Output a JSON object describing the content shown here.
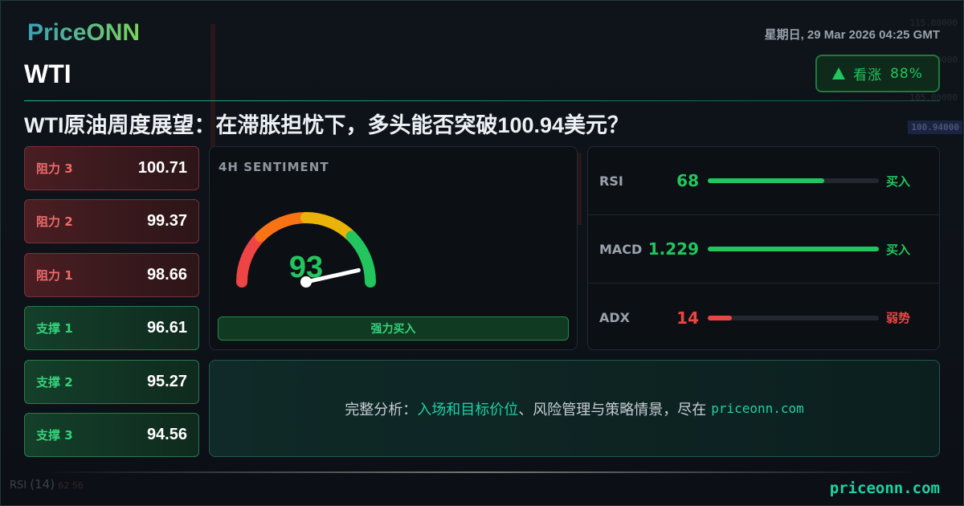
{
  "brand": {
    "logo": "PriceONN",
    "footer_url": "priceonn.com"
  },
  "header": {
    "symbol": "WTI",
    "datetime": "星期日, 29 Mar 2026 04:25 GMT",
    "sentiment_badge": {
      "label": "看涨",
      "percent": "88%",
      "direction": "up",
      "color": "#22c55e"
    },
    "title": "WTI原油周度展望：在滞胀担忧下，多头能否突破100.94美元？"
  },
  "background_chart": {
    "axis_labels": [
      "115.00000",
      "110.00000",
      "105.00000"
    ],
    "price_tag": "100.94000",
    "rsi_label": "RSI",
    "rsi_params": "(14)",
    "rsi_values": "62 56"
  },
  "levels": [
    {
      "label": "阻力 3",
      "value": "100.71",
      "type": "resistance"
    },
    {
      "label": "阻力 2",
      "value": "99.37",
      "type": "resistance"
    },
    {
      "label": "阻力 1",
      "value": "98.66",
      "type": "resistance"
    },
    {
      "label": "支撑 1",
      "value": "96.61",
      "type": "support"
    },
    {
      "label": "支撑 2",
      "value": "95.27",
      "type": "support"
    },
    {
      "label": "支撑 3",
      "value": "94.56",
      "type": "support"
    }
  ],
  "sentiment": {
    "title": "4H SENTIMENT",
    "score": "93",
    "score_value": 93,
    "verdict": "强力买入",
    "gauge_colors": [
      "#ef4444",
      "#f97316",
      "#eab308",
      "#22c55e"
    ]
  },
  "indicators": [
    {
      "name": "RSI",
      "value": "68",
      "fill_percent": 68,
      "signal": "买入",
      "color": "#22c55e"
    },
    {
      "name": "MACD",
      "value": "1.229",
      "fill_percent": 100,
      "signal": "买入",
      "color": "#22c55e"
    },
    {
      "name": "ADX",
      "value": "14",
      "fill_percent": 14,
      "signal": "弱势",
      "color": "#ef4444"
    }
  ],
  "cta": {
    "prefix": "完整分析：",
    "highlight": "入场和目标价位",
    "rest": "、风险管理与策略情景，尽在",
    "url": "priceonn.com"
  }
}
